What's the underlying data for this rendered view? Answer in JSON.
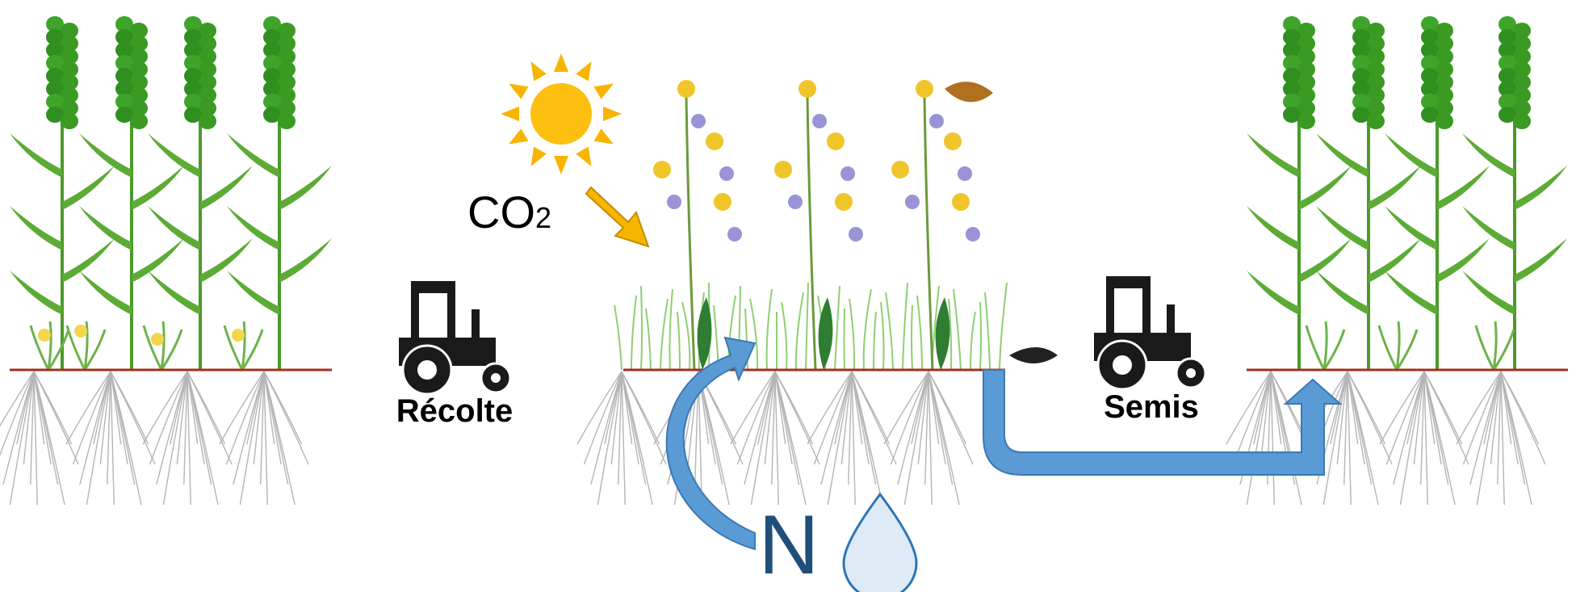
{
  "labels": {
    "harvest": "Récolte",
    "sowing": "Semis",
    "co2": "CO",
    "co2_subscript": "2",
    "nitrogen": "N"
  }
}
